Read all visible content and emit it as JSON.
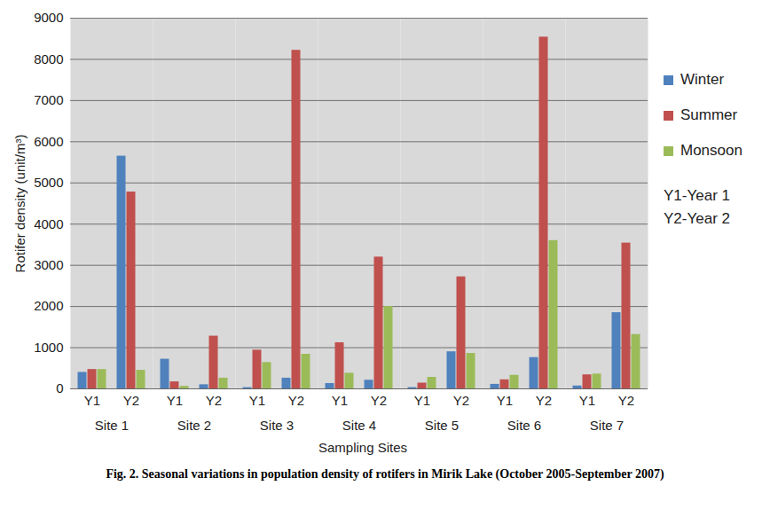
{
  "chart_data": {
    "type": "bar",
    "title": "Fig. 2. Seasonal variations in population density of rotifers in Mirik Lake (October 2005-September 2007)",
    "x_label": "Sampling Sites",
    "y_label": "Rotifer density (unit/m³)",
    "groups": [
      "Site 1",
      "Site 1",
      "Site 2",
      "Site 2",
      "Site 3",
      "Site 3",
      "Site 4",
      "Site 4",
      "Site 5",
      "Site 5",
      "Site 6",
      "Site 6",
      "Site 7",
      "Site 7"
    ],
    "categories": [
      "Y1",
      "Y2",
      "Y1",
      "Y2",
      "Y1",
      "Y2",
      "Y1",
      "Y2",
      "Y1",
      "Y2",
      "Y1",
      "Y2",
      "Y1",
      "Y2"
    ],
    "series": [
      {
        "name": "Winter",
        "color": "#4f81bd",
        "values": [
          400,
          5650,
          720,
          100,
          30,
          260,
          130,
          210,
          30,
          900,
          110,
          760,
          70,
          1850
        ]
      },
      {
        "name": "Summer",
        "color": "#c0504d",
        "values": [
          470,
          4780,
          170,
          1280,
          940,
          8220,
          1120,
          3200,
          140,
          2720,
          220,
          8540,
          340,
          3540
        ]
      },
      {
        "name": "Monsoon",
        "color": "#9bbb59",
        "values": [
          470,
          450,
          60,
          260,
          640,
          840,
          380,
          2000,
          280,
          860,
          330,
          3600,
          360,
          1320
        ]
      }
    ],
    "notes": [
      "Y1-Year 1",
      "Y2-Year 2"
    ],
    "ylim": [
      0,
      9000
    ],
    "yticks": [
      0,
      1000,
      2000,
      3000,
      4000,
      5000,
      6000,
      7000,
      8000,
      9000
    ],
    "grid": true,
    "legend": "right"
  }
}
